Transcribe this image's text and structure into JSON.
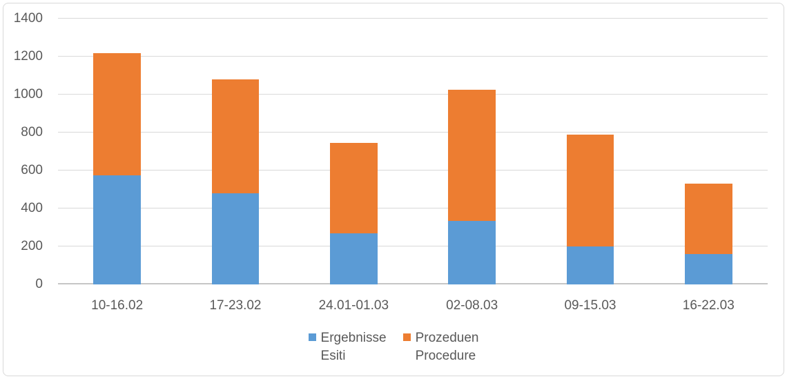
{
  "chart_data": {
    "type": "bar",
    "subtype": "stacked-column",
    "title": "",
    "xlabel": "",
    "ylabel": "",
    "categories": [
      "10-16.02",
      "17-23.02",
      "24.01-01.03",
      "02-08.03",
      "09-15.03",
      "16-22.03"
    ],
    "series": [
      {
        "name": "Ergebnisse Esiti",
        "label_line1": "Ergebnisse",
        "label_line2": "Esiti",
        "color": "#5B9BD5",
        "values": [
          575,
          480,
          270,
          335,
          200,
          160
        ]
      },
      {
        "name": "Prozeduen Procedure",
        "label_line1": "Prozeduen",
        "label_line2": "Procedure",
        "color": "#ED7D31",
        "values": [
          645,
          600,
          475,
          690,
          590,
          370
        ]
      }
    ],
    "stacked_totals": [
      1220,
      1080,
      745,
      1025,
      790,
      530
    ],
    "ylim": [
      0,
      1400
    ],
    "yticks": [
      0,
      200,
      400,
      600,
      800,
      1000,
      1200,
      1400
    ],
    "grid": true,
    "legend_position": "bottom",
    "colors": {
      "series_blue": "#5B9BD5",
      "series_orange": "#ED7D31",
      "gridline": "#D9D9D9",
      "axis_line": "#C6C6C6",
      "axis_text": "#595959",
      "frame_border": "#D9D9D9",
      "background": "#FFFFFF"
    }
  }
}
